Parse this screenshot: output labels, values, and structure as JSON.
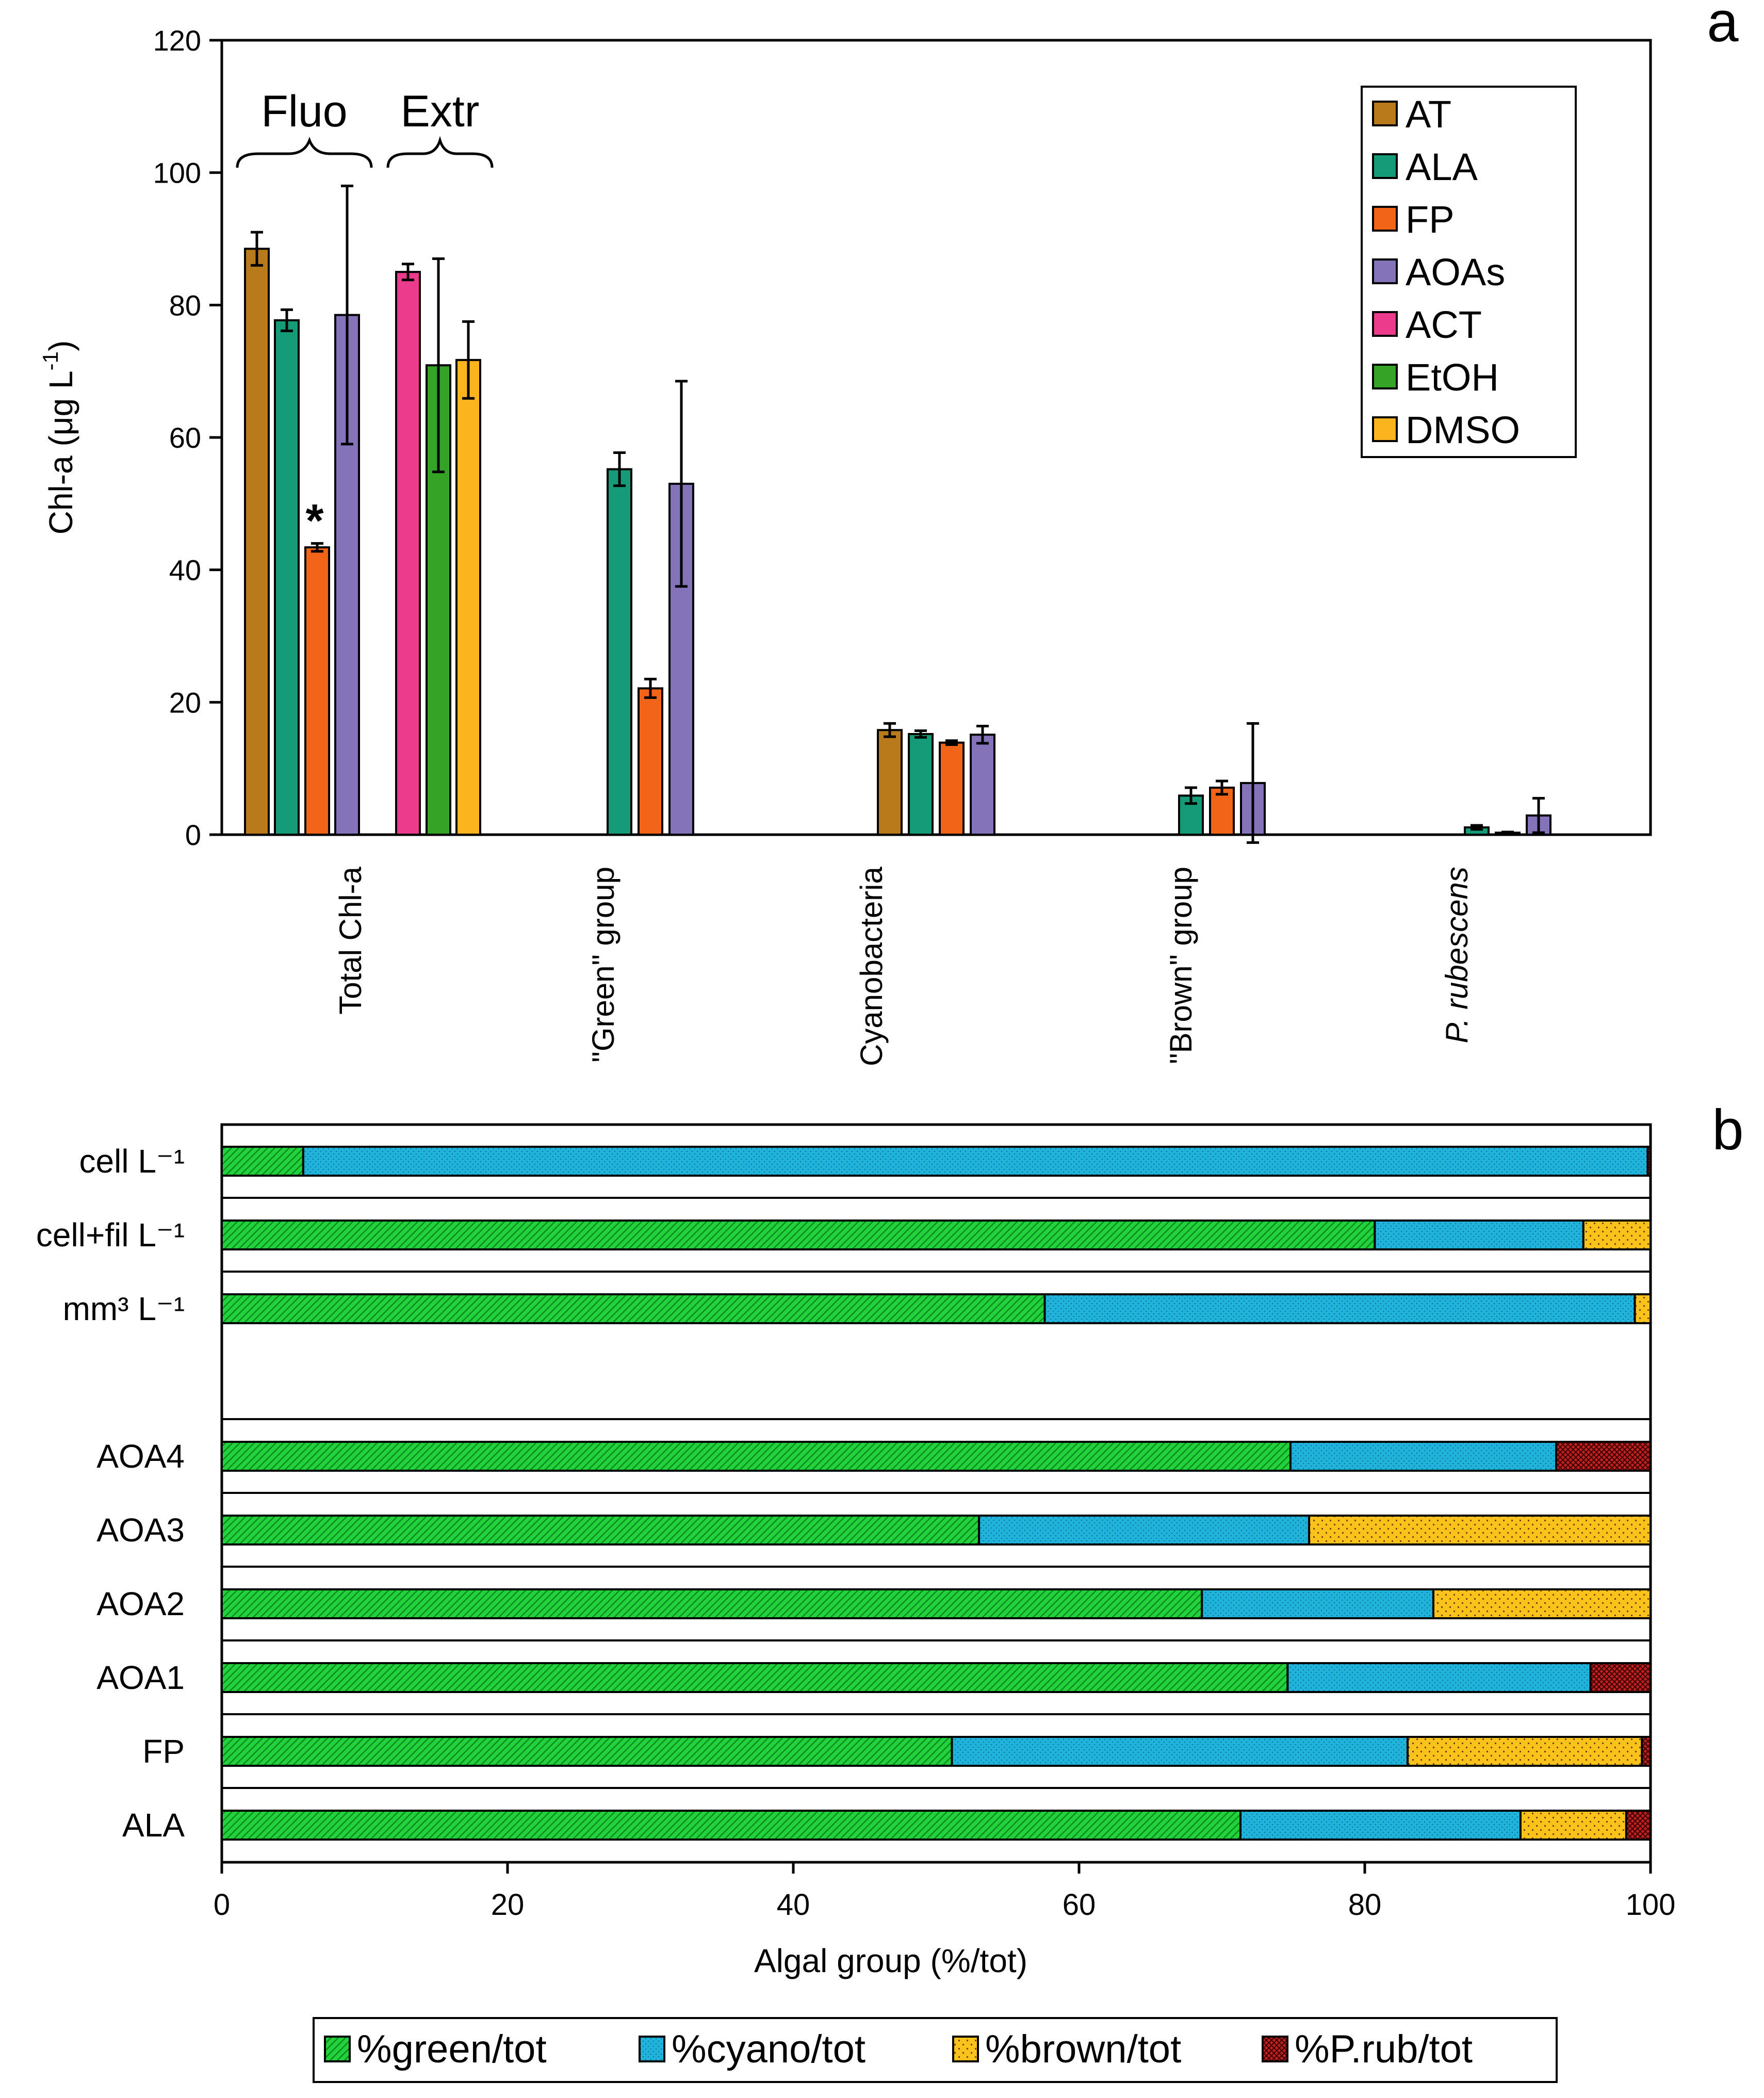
{
  "chart_data": [
    {
      "panel_label": "a",
      "type": "bar",
      "ylabel_main": "Chl-a (μg L",
      "ylabel_sup": "-1",
      "ylabel_end": ")",
      "ylim": [
        0,
        120
      ],
      "yticks": [
        0,
        20,
        40,
        60,
        80,
        100,
        120
      ],
      "grid": false,
      "legend_position": "top-right",
      "categories": [
        "Total Chl-a",
        "\"Green\" group",
        "Cyanobacteria",
        "\"Brown\" group",
        "P. rubescens"
      ],
      "series": [
        {
          "name": "AT",
          "color": "#b87a1a",
          "values": [
            88.5,
            null,
            15.8,
            null,
            null
          ],
          "errors": [
            2.5,
            null,
            1.0,
            null,
            null
          ]
        },
        {
          "name": "ALA",
          "color": "#169b79",
          "values": [
            77.7,
            55.2,
            15.2,
            5.9,
            1.1
          ],
          "errors": [
            1.6,
            2.5,
            0.5,
            1.2,
            0.3
          ]
        },
        {
          "name": "FP",
          "color": "#f26418",
          "values": [
            43.4,
            22.1,
            13.9,
            7.1,
            0.3
          ],
          "errors": [
            0.6,
            1.4,
            0.3,
            1.0,
            0.1
          ]
        },
        {
          "name": "AOAs",
          "color": "#8473b8",
          "values": [
            78.5,
            53.0,
            15.1,
            7.8,
            2.9
          ],
          "errors": [
            19.5,
            15.5,
            1.3,
            9.0,
            2.6
          ]
        },
        {
          "name": "ACT",
          "color": "#ec3b8c",
          "values": [
            85.0,
            null,
            null,
            null,
            null
          ],
          "errors": [
            1.2,
            null,
            null,
            null,
            null
          ]
        },
        {
          "name": "EtOH",
          "color": "#35a325",
          "values": [
            70.9,
            null,
            null,
            null,
            null
          ],
          "errors": [
            16.1,
            null,
            null,
            null,
            null
          ]
        },
        {
          "name": "DMSO",
          "color": "#fbb41e",
          "values": [
            71.7,
            null,
            null,
            null,
            null
          ],
          "errors": [
            5.8,
            null,
            null,
            null,
            null
          ]
        }
      ],
      "annotations": {
        "bracket_fluo": "Fluo",
        "bracket_extr": "Extr",
        "significance": "*"
      }
    },
    {
      "panel_label": "b",
      "type": "stacked_bar_horizontal",
      "xlabel": "Algal group (%/tot)",
      "xlim": [
        0,
        100
      ],
      "xticks": [
        0,
        20,
        40,
        60,
        80,
        100
      ],
      "legend_position": "bottom",
      "series": [
        {
          "name": "%green/tot",
          "color": "#22d23c"
        },
        {
          "name": "%cyano/tot",
          "color": "#1fb3dc"
        },
        {
          "name": "%brown/tot",
          "color": "#fcc21c"
        },
        {
          "name": "%P.rub/tot",
          "color": "#c0211d"
        }
      ],
      "rows": [
        {
          "label": "cell L⁻¹",
          "values": [
            5.7,
            94.1,
            0,
            0.2
          ]
        },
        {
          "label": "cell+fil L⁻¹",
          "values": [
            80.7,
            14.6,
            4.7,
            0
          ]
        },
        {
          "label": "mm³ L⁻¹",
          "values": [
            57.6,
            41.3,
            1.1,
            0
          ]
        },
        {
          "label": "AOA4",
          "values": [
            74.8,
            18.6,
            0,
            6.6
          ]
        },
        {
          "label": "AOA3",
          "values": [
            53.0,
            23.1,
            23.9,
            0
          ]
        },
        {
          "label": "AOA2",
          "values": [
            68.6,
            16.2,
            15.2,
            0
          ]
        },
        {
          "label": "AOA1",
          "values": [
            74.6,
            21.2,
            0,
            4.2
          ]
        },
        {
          "label": "FP",
          "values": [
            51.1,
            31.9,
            16.4,
            0.6
          ]
        },
        {
          "label": "ALA",
          "values": [
            71.3,
            19.6,
            7.4,
            1.7
          ]
        }
      ]
    }
  ]
}
